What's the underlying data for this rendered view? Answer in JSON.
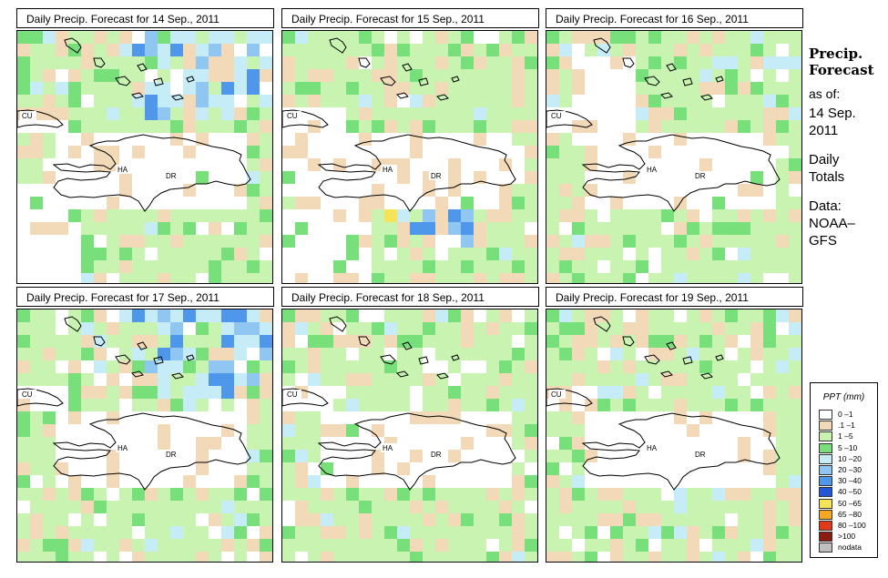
{
  "panels": [
    {
      "title": "Daily Precip. Forecast for  14 Sep., 2011",
      "labels": {
        "cu": "CU",
        "ha": "HA",
        "dr": "DR"
      }
    },
    {
      "title": "Daily Precip. Forecast for  15 Sep., 2011",
      "labels": {
        "cu": "CU",
        "ha": "HA",
        "dr": "DR"
      }
    },
    {
      "title": "Daily Precip. Forecast for  16 Sep., 2011",
      "labels": {
        "cu": "CU",
        "ha": "HA",
        "dr": "DR"
      }
    },
    {
      "title": "Daily Precip. Forecast for  17 Sep., 2011",
      "labels": {
        "cu": "CU",
        "ha": "HA",
        "dr": "DR"
      }
    },
    {
      "title": "Daily Precip. Forecast for  18 Sep., 2011",
      "labels": {
        "cu": "CU",
        "ha": "HA",
        "dr": "DR"
      }
    },
    {
      "title": "Daily Precip. Forecast for  19 Sep., 2011",
      "labels": {
        "cu": "CU",
        "ha": "HA",
        "dr": "DR"
      }
    }
  ],
  "sidebar": {
    "title_line1": "Precip.",
    "title_line2": "Forecast",
    "asof_label": "as of:",
    "date_line1": "14 Sep.",
    "date_line2": "2011",
    "type_line1": "Daily",
    "type_line2": "Totals",
    "data_label": "Data:",
    "data_line1": "NOAA–",
    "data_line2": "GFS"
  },
  "legend": {
    "title": "PPT (mm)",
    "items": [
      {
        "label": "0 –1",
        "color": "#ffffff"
      },
      {
        "label": ".1 –1",
        "color": "#f2d9b8"
      },
      {
        "label": "1 –5",
        "color": "#c8f3b0"
      },
      {
        "label": "5 –10",
        "color": "#78e07a"
      },
      {
        "label": "10 –20",
        "color": "#c6ecf7"
      },
      {
        "label": "20 –30",
        "color": "#8fc6f2"
      },
      {
        "label": "30 –40",
        "color": "#4f97ea"
      },
      {
        "label": "40 –50",
        "color": "#1f57d6"
      },
      {
        "label": "50 –65",
        "color": "#f5e45a"
      },
      {
        "label": "65 –80",
        "color": "#f5a623"
      },
      {
        "label": "80 –100",
        "color": "#e03a1a"
      },
      {
        "label": ">100",
        "color": "#8b1a10"
      },
      {
        "label": "nodata",
        "color": "#c0c0c0"
      }
    ]
  }
}
